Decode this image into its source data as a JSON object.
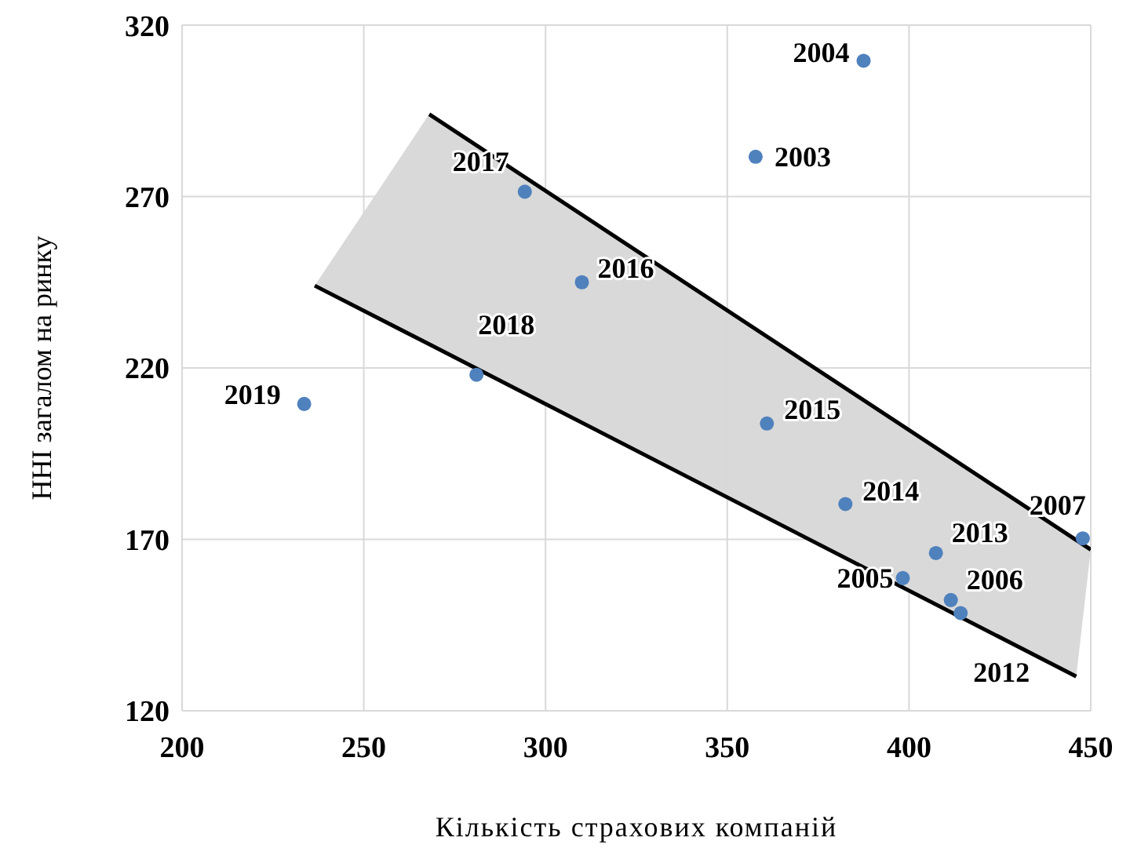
{
  "chart_data": {
    "type": "scatter",
    "xlabel": "Кількість страхових компаній",
    "ylabel": "ННІ загалом на ринку",
    "xlim": [
      200,
      450
    ],
    "ylim": [
      120,
      320
    ],
    "xticks": [
      200,
      250,
      300,
      350,
      400,
      450
    ],
    "yticks": [
      120,
      170,
      220,
      270,
      320
    ],
    "grid": true,
    "legend": false,
    "marker": "circle",
    "series": [
      {
        "color": "#4f81bd",
        "x": [
          357.8,
          387.5,
          398.3,
          411.5,
          447.8,
          414.2,
          407.4,
          382.5,
          360.9,
          310,
          294.3,
          281,
          233.6
        ],
        "values": [
          281.6,
          309.6,
          158.7,
          152.3,
          170.3,
          148.5,
          166,
          180.3,
          203.8,
          245,
          271.4,
          218,
          209.5
        ]
      },
      {
        "type": "line",
        "marker": "none",
        "color": "#000000",
        "x": [
          268,
          450
        ],
        "values": [
          294,
          167
        ]
      },
      {
        "type": "line",
        "marker": "none",
        "color": "#000000",
        "x": [
          236.5,
          268,
          446,
          450
        ],
        "values": [
          244,
          226.9,
          130,
          null
        ],
        "lower": [
          244,
          226.9,
          130,
          167
        ],
        "upper": [
          244,
          294,
          169.8,
          167
        ]
      }
    ],
    "annotations": [
      {
        "text": "2003",
        "x": 357.8,
        "y": 281.6
      },
      {
        "text": "2004",
        "x": 387.5,
        "y": 309.6
      },
      {
        "text": "2005",
        "x": 398.3,
        "y": 158.7
      },
      {
        "text": "2006",
        "x": 411.5,
        "y": 152.3
      },
      {
        "text": "2007",
        "x": 447.8,
        "y": 170.3
      },
      {
        "text": "2012",
        "x": 414.2,
        "y": 148.5
      },
      {
        "text": "2013",
        "x": 407.4,
        "y": 166
      },
      {
        "text": "2014",
        "x": 382.5,
        "y": 180.3
      },
      {
        "text": "2015",
        "x": 360.9,
        "y": 203.8
      },
      {
        "text": "2016",
        "x": 310,
        "y": 245
      },
      {
        "text": "2017",
        "x": 294.3,
        "y": 271.4
      },
      {
        "text": "2018",
        "x": 281,
        "y": 218
      },
      {
        "text": "2019",
        "x": 233.6,
        "y": 209.5
      }
    ]
  }
}
